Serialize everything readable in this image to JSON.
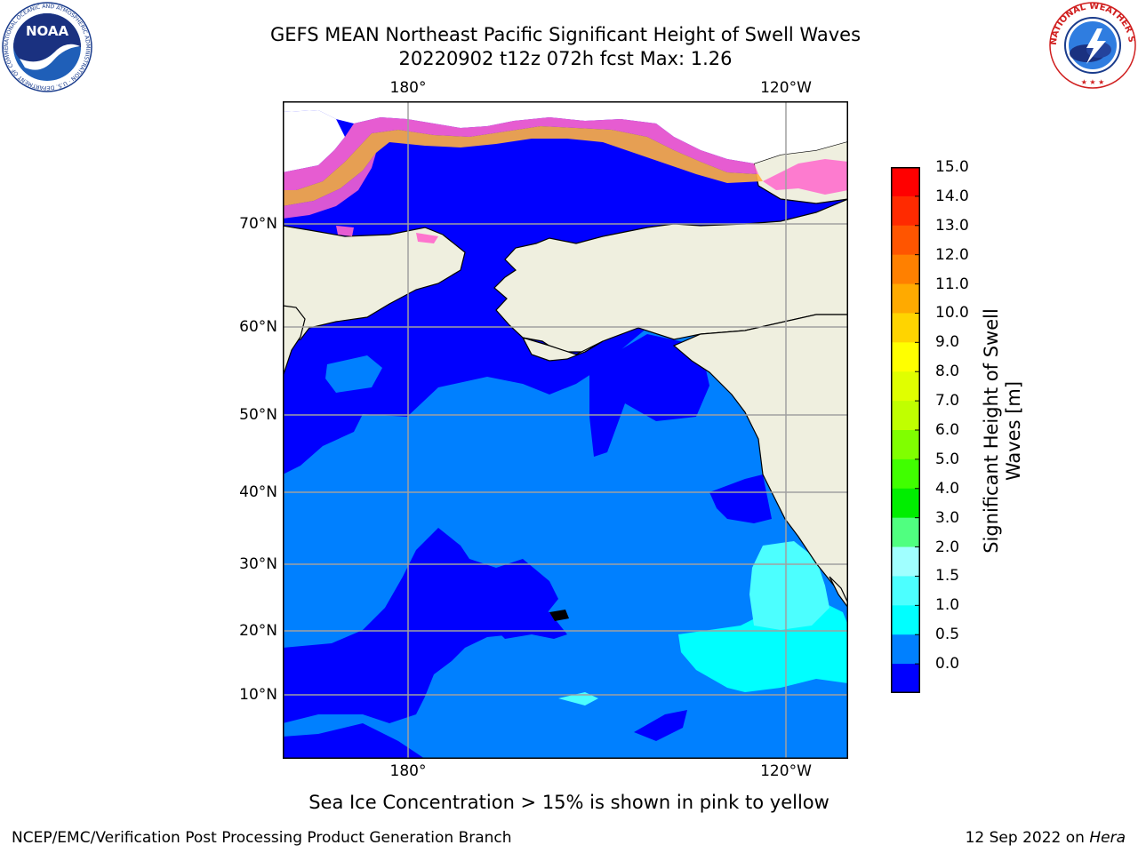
{
  "title": {
    "line1": "GEFS MEAN Northeast Pacific Significant Height of Swell Waves",
    "line2": "20220902 t12z 072h fcst   Max: 1.26"
  },
  "map": {
    "top_lon_labels": [
      "180°",
      "120°W"
    ],
    "bottom_lon_labels": [
      "180°",
      "120°W"
    ],
    "lat_labels": [
      "70°N",
      "60°N",
      "50°N",
      "40°N",
      "30°N",
      "20°N",
      "10°N"
    ],
    "colors": {
      "land": "#efefdf",
      "deep_blue": "#0000ff",
      "mid_blue": "#0080ff",
      "cyan": "#00ffff",
      "light_cyan": "#4cffff",
      "grid": "#a0a0a0",
      "ice_pink": "#ff66cc",
      "ice_orange": "#ffb040",
      "ice_white": "#ffffff"
    }
  },
  "colorbar": {
    "ticks": [
      "15.0",
      "14.0",
      "13.0",
      "12.0",
      "11.0",
      "10.0",
      "9.0",
      "8.0",
      "7.0",
      "6.0",
      "5.0",
      "4.0",
      "3.0",
      "2.0",
      "1.5",
      "1.0",
      "0.5",
      "0.0"
    ],
    "colors_top_to_bottom": [
      "#ff0000",
      "#ff2a00",
      "#ff5500",
      "#ff8000",
      "#ffaa00",
      "#ffd400",
      "#ffff00",
      "#e0ff00",
      "#c0ff00",
      "#80ff00",
      "#40ff00",
      "#00ee00",
      "#50ff80",
      "#a0ffff",
      "#4cffff",
      "#00ffff",
      "#0080ff",
      "#0000ff"
    ],
    "label_line1": "Significant Height of Swell",
    "label_line2": "Waves [m]"
  },
  "footnote": "Sea Ice Concentration > 15% is shown in pink to yellow",
  "footer": {
    "org": "NCEP/EMC/Verification Post Processing Product Generation Branch",
    "date": "12 Sep 2022 on",
    "machine": "Hera"
  },
  "logos": {
    "noaa": "NOAA",
    "noaa_ring": "NATIONAL OCEANIC AND ATMOSPHERIC ADMINISTRATION · U.S. DEPARTMENT OF COMMERCE",
    "nws_ring": "NATIONAL WEATHER SERVICE"
  }
}
